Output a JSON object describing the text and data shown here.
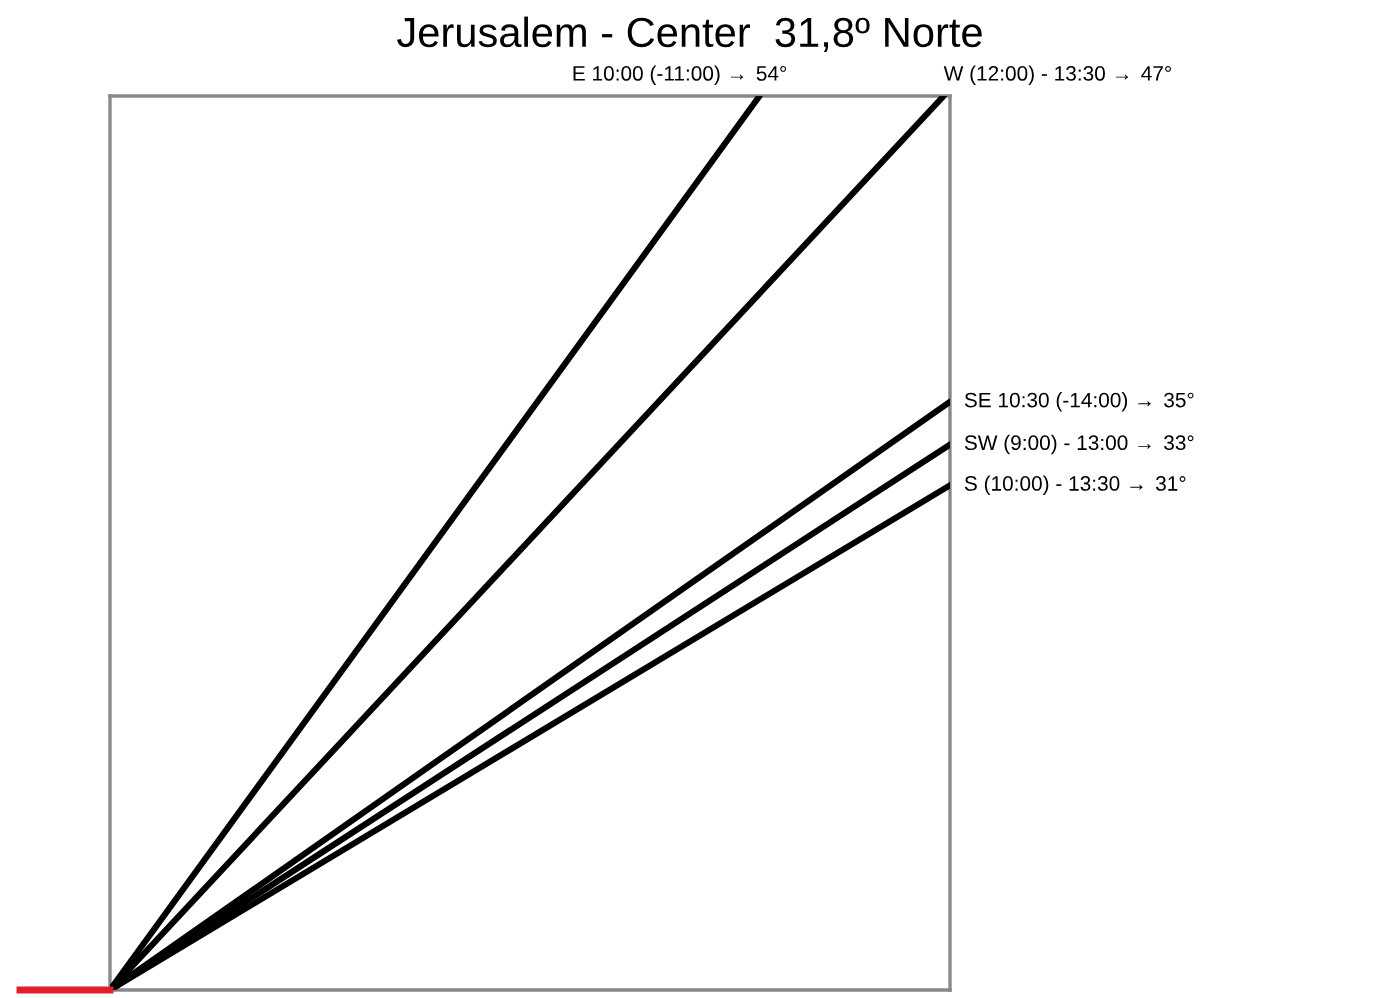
{
  "chart_data": {
    "type": "other",
    "title": "Jerusalem - Center  31,8º Norte",
    "series": [
      {
        "name": "E 10:00 (-11:00) →",
        "color": "#000000",
        "values": [
          54
        ],
        "value_labels": [
          "54°"
        ]
      },
      {
        "name": "W (12:00) - 13:30 →",
        "color": "#000000",
        "values": [
          47
        ],
        "value_labels": [
          "47°"
        ]
      },
      {
        "name": "SE 10:30 (-14:00) →",
        "color": "#000000",
        "values": [
          35
        ],
        "value_labels": [
          "35°"
        ]
      },
      {
        "name": "SW (9:00) - 13:00 →",
        "color": "#000000",
        "values": [
          33
        ],
        "value_labels": [
          "33°"
        ]
      },
      {
        "name": "S (10:00) - 13:30 →",
        "color": "#000000",
        "values": [
          31
        ],
        "value_labels": [
          "31°"
        ]
      }
    ]
  }
}
